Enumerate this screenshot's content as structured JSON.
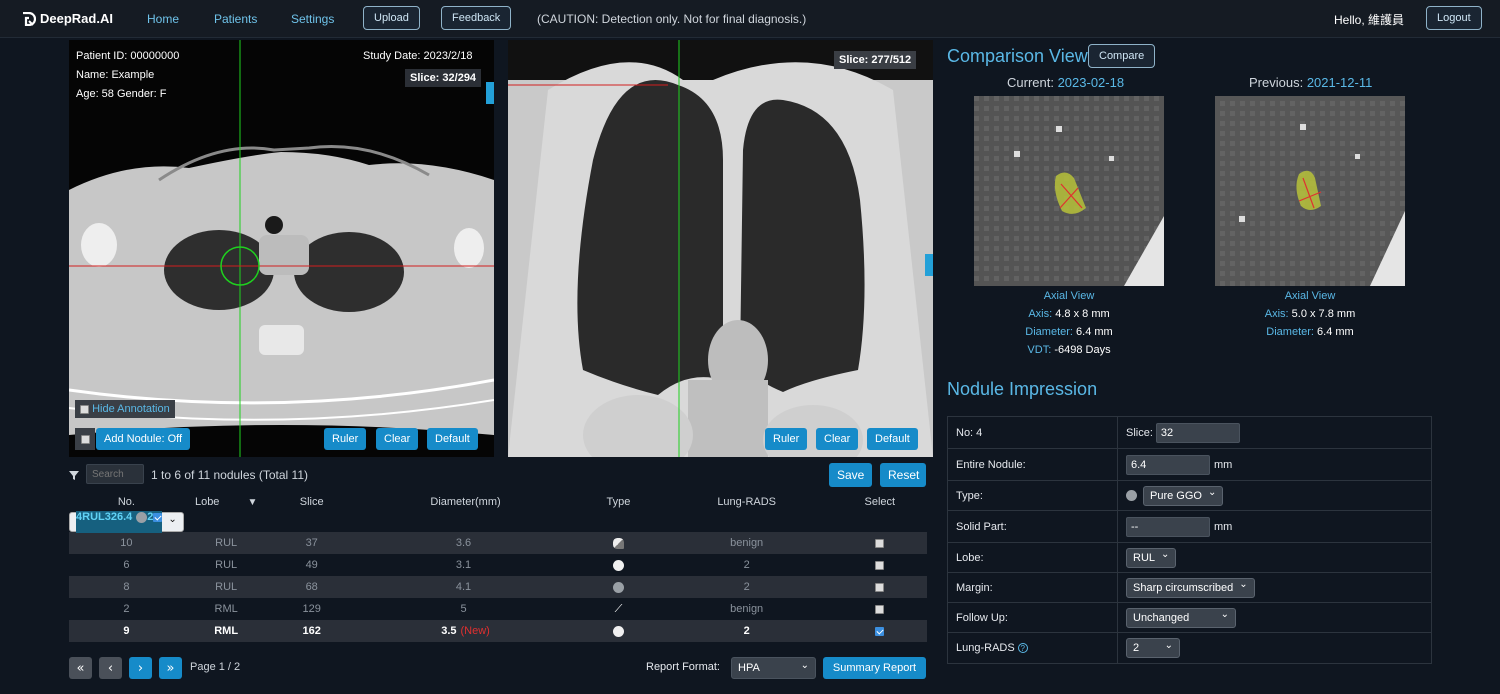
{
  "header": {
    "brand": "DeepRad.AI",
    "nav": [
      "Home",
      "Patients",
      "Settings"
    ],
    "upload_label": "Upload",
    "feedback_label": "Feedback",
    "caution": "(CAUTION: Detection only. Not for final diagnosis.)",
    "greeting": "Hello, 維護員",
    "logout_label": "Logout"
  },
  "axial": {
    "patient_id": "Patient ID: 00000000",
    "name": "Name: Example",
    "age_gender": "Age: 58 Gender: F",
    "study_date": "Study Date: 2023/2/18",
    "slice": "Slice: 32/294",
    "hide_annotation": "Hide Annotation",
    "add_nodule": "Add Nodule: Off",
    "ruler": "Ruler",
    "clear": "Clear",
    "default": "Default"
  },
  "coronal": {
    "slice": "Slice: 277/512",
    "ruler": "Ruler",
    "clear": "Clear",
    "default": "Default"
  },
  "table": {
    "search_placeholder": "Search",
    "summary": "1 to 6 of 11 nodules (Total 11)",
    "save": "Save",
    "reset": "Reset",
    "columns": [
      "No.",
      "Lobe",
      "Slice",
      "Diameter(mm)",
      "Type",
      "Lung-RADS",
      "Select"
    ],
    "rows": [
      {
        "no": "4",
        "lobe": "RUL",
        "slice": "32",
        "diameter": "6.4",
        "new": "",
        "type": "gray",
        "lungrads": "2",
        "selected": true
      },
      {
        "no": "10",
        "lobe": "RUL",
        "slice": "37",
        "diameter": "3.6",
        "new": "",
        "type": "partial",
        "lungrads": "benign",
        "selected": false
      },
      {
        "no": "6",
        "lobe": "RUL",
        "slice": "49",
        "diameter": "3.1",
        "new": "",
        "type": "white",
        "lungrads": "2",
        "selected": false
      },
      {
        "no": "8",
        "lobe": "RUL",
        "slice": "68",
        "diameter": "4.1",
        "new": "",
        "type": "gray",
        "lungrads": "2",
        "selected": false
      },
      {
        "no": "2",
        "lobe": "RML",
        "slice": "129",
        "diameter": "5",
        "new": "",
        "type": "calcified",
        "lungrads": "benign",
        "selected": false
      },
      {
        "no": "9",
        "lobe": "RML",
        "slice": "162",
        "diameter": "3.5",
        "new": "(New)",
        "type": "white",
        "lungrads": "2",
        "selected": true
      }
    ],
    "page": "Page 1 / 2",
    "report_format_label": "Report Format:",
    "report_format": "HPA",
    "summary_report": "Summary Report"
  },
  "comparison": {
    "title": "Comparison View",
    "compare_label": "Compare",
    "current_label": "Current: ",
    "current_date": "2023-02-18",
    "previous_label": "Previous: ",
    "previous_date": "2021-12-11",
    "current": {
      "view": "Axial View",
      "axis_k": "Axis:",
      "axis": " 4.8 x 8 mm",
      "diam_k": "Diameter:",
      "diam": " 6.4 mm",
      "vdt_k": "VDT:",
      "vdt": " -6498 Days"
    },
    "previous": {
      "view": "Axial View",
      "axis_k": "Axis:",
      "axis": " 5.0 x 7.8 mm",
      "diam_k": "Diameter:",
      "diam": " 6.4 mm"
    }
  },
  "impression": {
    "title": "Nodule Impression",
    "no": "No: 4",
    "slice_label": "Slice:",
    "slice_value": "32",
    "entire_label": "Entire Nodule:",
    "entire_value": "6.4",
    "mm": "mm",
    "type_label": "Type:",
    "type_value": "Pure GGO",
    "solid_label": "Solid Part:",
    "solid_value": "--",
    "lobe_label": "Lobe:",
    "lobe_value": "RUL",
    "margin_label": "Margin:",
    "margin_value": "Sharp circumscribed",
    "follow_label": "Follow Up:",
    "follow_value": "Unchanged",
    "lungrads_label": "Lung-RADS",
    "lungrads_value": "2"
  },
  "colors": {
    "accent": "#168bc9",
    "link": "#5ab8e6",
    "selected_row": "#16607f",
    "new_tag": "#e03030"
  }
}
